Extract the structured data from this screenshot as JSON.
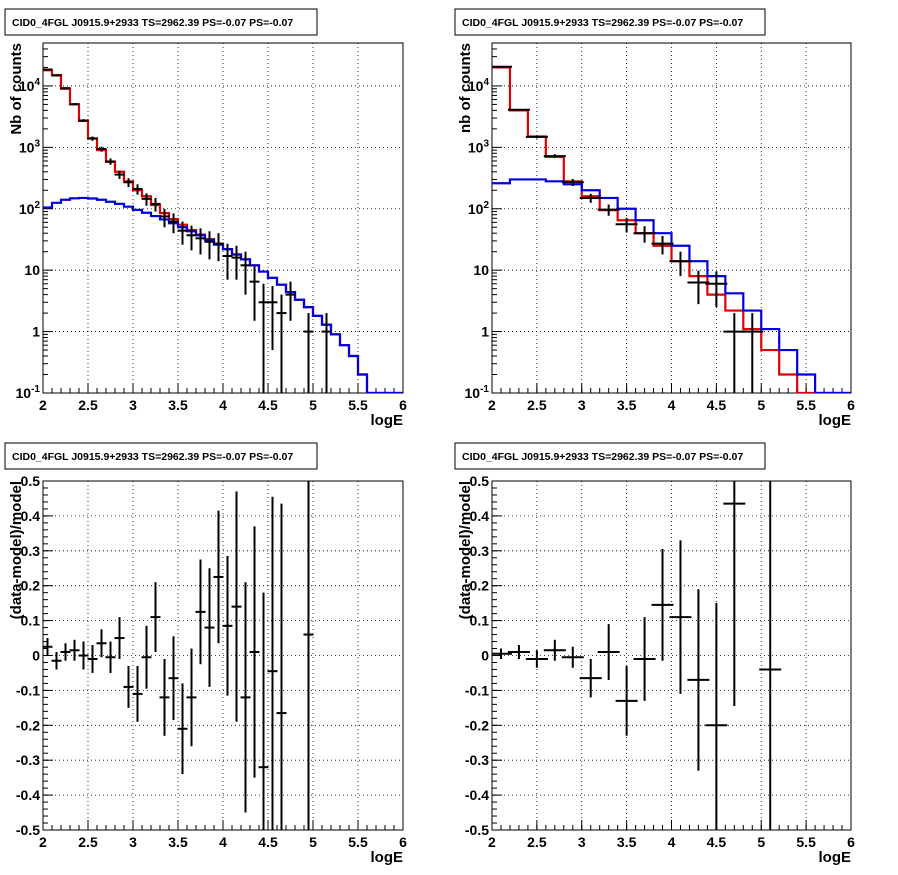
{
  "chart_data": [
    {
      "type": "line",
      "title": "CID0_4FGL J0915.9+2933 TS=2962.39 PS=-0.07 PS=-0.07",
      "xlabel": "logE",
      "ylabel": "Nb of counts",
      "xlim": [
        2,
        6
      ],
      "ylim": [
        0.1,
        50000
      ],
      "yscale": "log",
      "grid": true,
      "x_ticks": [
        "2",
        "2.5",
        "3",
        "3.5",
        "4",
        "4.5",
        "5",
        "5.5",
        "6"
      ],
      "y_ticks": [
        "10^{-1}",
        "1",
        "10",
        "10^{2}",
        "10^{3}",
        "10^{4}"
      ],
      "series": [
        {
          "color": "#e00000",
          "step": true,
          "edges": [
            2.0,
            2.1,
            2.2,
            2.3,
            2.4,
            2.5,
            2.6,
            2.7,
            2.8,
            2.9,
            3.0,
            3.1,
            3.2,
            3.3,
            3.4,
            3.5,
            3.6,
            3.7,
            3.8,
            3.9,
            4.0,
            4.1,
            4.2,
            4.3,
            4.4,
            4.5,
            4.6,
            4.7,
            4.8,
            4.9,
            5.0,
            5.1,
            5.2,
            5.3,
            5.4,
            5.5,
            5.6,
            5.7,
            5.8,
            5.9,
            6.0
          ],
          "values": [
            18000,
            15000,
            9000,
            5000,
            2700,
            1400,
            900,
            580,
            400,
            280,
            200,
            160,
            115,
            85,
            68,
            55,
            45,
            38,
            32,
            27,
            22,
            18,
            15,
            12,
            9.5,
            7.5,
            5.8,
            4.4,
            3.3,
            2.5,
            1.8,
            1.3,
            0.9,
            0.6,
            0.4,
            0.2,
            0.1,
            0.1,
            0.1,
            0.1
          ]
        },
        {
          "color": "#0000dd",
          "step": true,
          "edges": [
            2.0,
            2.1,
            2.2,
            2.3,
            2.4,
            2.5,
            2.6,
            2.7,
            2.8,
            2.9,
            3.0,
            3.1,
            3.2,
            3.3,
            3.4,
            3.5,
            3.6,
            3.7,
            3.8,
            3.9,
            4.0,
            4.1,
            4.2,
            4.3,
            4.4,
            4.5,
            4.6,
            4.7,
            4.8,
            4.9,
            5.0,
            5.1,
            5.2,
            5.3,
            5.4,
            5.5,
            5.6,
            5.7,
            5.8,
            5.9,
            6.0
          ],
          "values": [
            105,
            125,
            140,
            148,
            150,
            147,
            140,
            130,
            120,
            108,
            96,
            86,
            76,
            67,
            58,
            50,
            43,
            37,
            31,
            26,
            22,
            18,
            15,
            12,
            9.5,
            7.5,
            5.8,
            4.4,
            3.3,
            2.5,
            1.8,
            1.3,
            0.9,
            0.6,
            0.4,
            0.2,
            0.1,
            0.1,
            0.1,
            0.1
          ]
        },
        {
          "color": "#000000",
          "points": [
            {
              "x": 2.05,
              "y": 18500,
              "err": 400
            },
            {
              "x": 2.15,
              "y": 14800,
              "err": 350
            },
            {
              "x": 2.25,
              "y": 9200,
              "err": 280
            },
            {
              "x": 2.35,
              "y": 5050,
              "err": 200
            },
            {
              "x": 2.45,
              "y": 2730,
              "err": 150
            },
            {
              "x": 2.55,
              "y": 1390,
              "err": 110
            },
            {
              "x": 2.65,
              "y": 940,
              "err": 90
            },
            {
              "x": 2.75,
              "y": 590,
              "err": 70
            },
            {
              "x": 2.85,
              "y": 360,
              "err": 55
            },
            {
              "x": 2.95,
              "y": 270,
              "err": 45
            },
            {
              "x": 3.05,
              "y": 210,
              "err": 40
            },
            {
              "x": 3.15,
              "y": 145,
              "err": 33
            },
            {
              "x": 3.25,
              "y": 120,
              "err": 30
            },
            {
              "x": 3.35,
              "y": 75,
              "err": 25
            },
            {
              "x": 3.45,
              "y": 62,
              "err": 22
            },
            {
              "x": 3.55,
              "y": 44,
              "err": 18
            },
            {
              "x": 3.65,
              "y": 37,
              "err": 16
            },
            {
              "x": 3.75,
              "y": 33,
              "err": 15
            },
            {
              "x": 3.85,
              "y": 29,
              "err": 14
            },
            {
              "x": 3.95,
              "y": 27,
              "err": 13
            },
            {
              "x": 4.05,
              "y": 17,
              "err": 10
            },
            {
              "x": 4.15,
              "y": 16,
              "err": 9
            },
            {
              "x": 4.25,
              "y": 12,
              "err": 8
            },
            {
              "x": 4.35,
              "y": 6.5,
              "err": 5
            },
            {
              "x": 4.45,
              "y": 3,
              "err": 3
            },
            {
              "x": 4.55,
              "y": 3,
              "err": 2.5
            },
            {
              "x": 4.65,
              "y": 2,
              "err": 2
            },
            {
              "x": 4.75,
              "y": 4,
              "err": 2.5
            },
            {
              "x": 4.95,
              "y": 1,
              "err": 1
            },
            {
              "x": 5.15,
              "y": 1,
              "err": 1
            }
          ]
        }
      ]
    },
    {
      "type": "line",
      "title": "CID0_4FGL J0915.9+2933 TS=2962.39 PS=-0.07 PS=-0.07",
      "xlabel": "logE",
      "ylabel": "nb of counts",
      "xlim": [
        2,
        6
      ],
      "ylim": [
        0.1,
        50000
      ],
      "yscale": "log",
      "grid": true,
      "x_ticks": [
        "2",
        "2.5",
        "3",
        "3.5",
        "4",
        "4.5",
        "5",
        "5.5",
        "6"
      ],
      "y_ticks": [
        "10^{-1}",
        "1",
        "10",
        "10^{2}",
        "10^{3}",
        "10^{4}"
      ],
      "series": [
        {
          "color": "#e00000",
          "step": true,
          "edges": [
            2.0,
            2.2,
            2.4,
            2.6,
            2.8,
            3.0,
            3.2,
            3.4,
            3.6,
            3.8,
            4.0,
            4.2,
            4.4,
            4.6,
            4.8,
            5.0,
            5.2,
            5.4,
            5.6,
            5.8,
            6.0
          ],
          "values": [
            20000,
            4000,
            1500,
            700,
            280,
            160,
            95,
            65,
            40,
            25,
            14,
            8,
            4,
            2.2,
            1.1,
            0.5,
            0.2,
            0.1,
            0.1,
            0.1
          ]
        },
        {
          "color": "#0000dd",
          "step": true,
          "edges": [
            2.0,
            2.2,
            2.4,
            2.6,
            2.8,
            3.0,
            3.2,
            3.4,
            3.6,
            3.8,
            4.0,
            4.2,
            4.4,
            4.6,
            4.8,
            5.0,
            5.2,
            5.4,
            5.6,
            5.8,
            6.0
          ],
          "values": [
            260,
            300,
            300,
            280,
            250,
            200,
            150,
            100,
            65,
            40,
            25,
            14,
            8,
            4.2,
            2.2,
            1.1,
            0.5,
            0.2,
            0.1,
            0.1
          ]
        },
        {
          "color": "#000000",
          "points": [
            {
              "x": 2.1,
              "y": 20500,
              "err": 300
            },
            {
              "x": 2.3,
              "y": 4100,
              "err": 130
            },
            {
              "x": 2.5,
              "y": 1480,
              "err": 80
            },
            {
              "x": 2.7,
              "y": 720,
              "err": 55
            },
            {
              "x": 2.9,
              "y": 270,
              "err": 35
            },
            {
              "x": 3.1,
              "y": 150,
              "err": 25
            },
            {
              "x": 3.3,
              "y": 97,
              "err": 20
            },
            {
              "x": 3.5,
              "y": 56,
              "err": 15
            },
            {
              "x": 3.7,
              "y": 40,
              "err": 12
            },
            {
              "x": 3.9,
              "y": 27,
              "err": 9
            },
            {
              "x": 4.1,
              "y": 14,
              "err": 6
            },
            {
              "x": 4.3,
              "y": 6.3,
              "err": 3.5
            },
            {
              "x": 4.5,
              "y": 6,
              "err": 3.5
            },
            {
              "x": 4.7,
              "y": 1,
              "err": 1
            },
            {
              "x": 4.9,
              "y": 1,
              "err": 1
            }
          ]
        }
      ]
    },
    {
      "type": "scatter",
      "title": "CID0_4FGL J0915.9+2933 TS=2962.39 PS=-0.07 PS=-0.07",
      "xlabel": "logE",
      "ylabel": "(data-model)/model",
      "xlim": [
        2,
        6
      ],
      "ylim": [
        -0.5,
        0.5
      ],
      "grid": true,
      "x_ticks": [
        "2",
        "2.5",
        "3",
        "3.5",
        "4",
        "4.5",
        "5",
        "5.5",
        "6"
      ],
      "y_ticks": [
        "-0.5",
        "-0.4",
        "-0.3",
        "-0.2",
        "-0.1",
        "0",
        "0.1",
        "0.2",
        "0.3",
        "0.4",
        "0.5"
      ],
      "series": [
        {
          "color": "#000000",
          "points": [
            {
              "x": 2.05,
              "y": 0.025,
              "err": 0.025
            },
            {
              "x": 2.15,
              "y": -0.015,
              "err": 0.025
            },
            {
              "x": 2.25,
              "y": 0.01,
              "err": 0.025
            },
            {
              "x": 2.35,
              "y": 0.015,
              "err": 0.03
            },
            {
              "x": 2.45,
              "y": 0.0,
              "err": 0.04
            },
            {
              "x": 2.55,
              "y": -0.01,
              "err": 0.04
            },
            {
              "x": 2.65,
              "y": 0.035,
              "err": 0.04
            },
            {
              "x": 2.75,
              "y": -0.005,
              "err": 0.045
            },
            {
              "x": 2.85,
              "y": 0.05,
              "err": 0.06
            },
            {
              "x": 2.95,
              "y": -0.09,
              "err": 0.06
            },
            {
              "x": 3.05,
              "y": -0.11,
              "err": 0.08
            },
            {
              "x": 3.15,
              "y": -0.005,
              "err": 0.09
            },
            {
              "x": 3.25,
              "y": 0.11,
              "err": 0.1
            },
            {
              "x": 3.35,
              "y": -0.12,
              "err": 0.11
            },
            {
              "x": 3.45,
              "y": -0.065,
              "err": 0.12
            },
            {
              "x": 3.55,
              "y": -0.21,
              "err": 0.13
            },
            {
              "x": 3.65,
              "y": -0.12,
              "err": 0.14
            },
            {
              "x": 3.75,
              "y": 0.125,
              "err": 0.15
            },
            {
              "x": 3.85,
              "y": 0.08,
              "err": 0.17
            },
            {
              "x": 3.95,
              "y": 0.225,
              "err": 0.19
            },
            {
              "x": 4.05,
              "y": 0.085,
              "err": 0.2
            },
            {
              "x": 4.15,
              "y": 0.14,
              "err": 0.33
            },
            {
              "x": 4.25,
              "y": -0.12,
              "err": 0.33
            },
            {
              "x": 4.35,
              "y": 0.01,
              "err": 0.36
            },
            {
              "x": 4.45,
              "y": -0.32,
              "err": 0.5
            },
            {
              "x": 4.55,
              "y": -0.045,
              "err": 0.5
            },
            {
              "x": 4.65,
              "y": -0.165,
              "err": 0.6
            },
            {
              "x": 4.95,
              "y": 0.06,
              "err": 0.7
            }
          ]
        }
      ]
    },
    {
      "type": "scatter",
      "title": "CID0_4FGL J0915.9+2933 TS=2962.39 PS=-0.07 PS=-0.07",
      "xlabel": "logE",
      "ylabel": "(data-model)/model",
      "xlim": [
        2,
        6
      ],
      "ylim": [
        -0.5,
        0.5
      ],
      "grid": true,
      "x_ticks": [
        "2",
        "2.5",
        "3",
        "3.5",
        "4",
        "4.5",
        "5",
        "5.5",
        "6"
      ],
      "y_ticks": [
        "-0.5",
        "-0.4",
        "-0.3",
        "-0.2",
        "-0.1",
        "0",
        "0.1",
        "0.2",
        "0.3",
        "0.4",
        "0.5"
      ],
      "series": [
        {
          "color": "#000000",
          "points": [
            {
              "x": 2.1,
              "y": 0.005,
              "err": 0.015
            },
            {
              "x": 2.3,
              "y": 0.01,
              "err": 0.02
            },
            {
              "x": 2.5,
              "y": -0.01,
              "err": 0.025
            },
            {
              "x": 2.7,
              "y": 0.015,
              "err": 0.03
            },
            {
              "x": 2.9,
              "y": -0.005,
              "err": 0.03
            },
            {
              "x": 3.1,
              "y": -0.065,
              "err": 0.055
            },
            {
              "x": 3.3,
              "y": 0.01,
              "err": 0.08
            },
            {
              "x": 3.5,
              "y": -0.13,
              "err": 0.1
            },
            {
              "x": 3.7,
              "y": -0.01,
              "err": 0.12
            },
            {
              "x": 3.9,
              "y": 0.145,
              "err": 0.16
            },
            {
              "x": 4.1,
              "y": 0.11,
              "err": 0.22
            },
            {
              "x": 4.3,
              "y": -0.07,
              "err": 0.26
            },
            {
              "x": 4.5,
              "y": -0.2,
              "err": 0.35
            },
            {
              "x": 4.7,
              "y": 0.435,
              "err": 0.58
            },
            {
              "x": 5.1,
              "y": -0.04,
              "err": 0.9
            }
          ]
        }
      ]
    }
  ]
}
